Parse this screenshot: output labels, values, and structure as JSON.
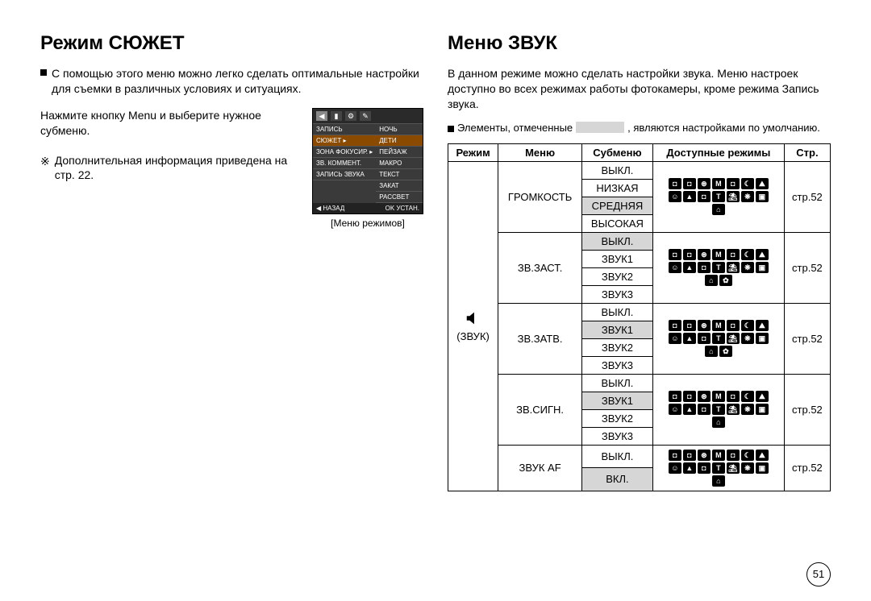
{
  "page_number": "51",
  "left": {
    "title": "Режим СЮЖЕТ",
    "intro": "С помощью этого меню можно легко сделать оптимальные настройки для съемки в различных условиях и ситуациях.",
    "press_menu": "Нажмите кнопку Menu и выберите нужное субменю.",
    "more_info": "Дополнительная информация приведена на стр. 22.",
    "menu_caption": "[Меню режимов]",
    "menu": {
      "left_items": [
        "ЗАПИСЬ",
        "СЮЖЕТ",
        "ЗОНА ФОКУСИР.",
        "ЗВ. КОММЕНТ.",
        "ЗАПИСЬ ЗВУКА"
      ],
      "right_items": [
        "НОЧЬ",
        "ДЕТИ",
        "ПЕЙЗАЖ",
        "МАКРО",
        "ТЕКСТ",
        "ЗАКАТ",
        "РАССВЕТ"
      ],
      "back": "◀ НАЗАД",
      "ok": "OK УСТАН."
    }
  },
  "right": {
    "title": "Меню ЗВУК",
    "intro": "В данном режиме можно сделать настройки звука. Меню настроек доступно во всех режимах работы фотокамеры, кроме режима Запись звука.",
    "default_note_pre": "Элементы, отмеченные",
    "default_note_post": ", являются настройками по умолчанию.",
    "table": {
      "headers": {
        "mode": "Режим",
        "menu": "Меню",
        "submenu": "Субменю",
        "modes_avail": "Доступные режимы",
        "page": "Стр."
      },
      "mode_label": "(ЗВУК)",
      "page_ref": "стр.52",
      "groups": [
        {
          "menu": "ГРОМКОСТЬ",
          "items": [
            {
              "label": "ВЫКЛ.",
              "default": false
            },
            {
              "label": "НИЗКАЯ",
              "default": false
            },
            {
              "label": "СРЕДНЯЯ",
              "default": true
            },
            {
              "label": "ВЫСОКАЯ",
              "default": false
            }
          ],
          "icon_count": 15
        },
        {
          "menu": "ЗВ.ЗАСТ.",
          "items": [
            {
              "label": "ВЫКЛ.",
              "default": true
            },
            {
              "label": "ЗВУК1",
              "default": false
            },
            {
              "label": "ЗВУК2",
              "default": false
            },
            {
              "label": "ЗВУК3",
              "default": false
            }
          ],
          "icon_count": 16
        },
        {
          "menu": "ЗВ.ЗАТВ.",
          "items": [
            {
              "label": "ВЫКЛ.",
              "default": false
            },
            {
              "label": "ЗВУК1",
              "default": true
            },
            {
              "label": "ЗВУК2",
              "default": false
            },
            {
              "label": "ЗВУК3",
              "default": false
            }
          ],
          "icon_count": 16
        },
        {
          "menu": "ЗВ.СИГН.",
          "items": [
            {
              "label": "ВЫКЛ.",
              "default": false
            },
            {
              "label": "ЗВУК1",
              "default": true
            },
            {
              "label": "ЗВУК2",
              "default": false
            },
            {
              "label": "ЗВУК3",
              "default": false
            }
          ],
          "icon_count": 15
        },
        {
          "menu": "ЗВУК AF",
          "items": [
            {
              "label": "ВЫКЛ.",
              "default": false
            },
            {
              "label": "ВКЛ.",
              "default": true
            }
          ],
          "icon_count": 15
        }
      ],
      "mode_glyphs": [
        "◘",
        "◘",
        "⊛",
        "M",
        "◘",
        "☾",
        "⛰",
        "☺",
        "▲",
        "◘",
        "T",
        "⛱",
        "❋",
        "▣",
        "⌂",
        "✿"
      ]
    }
  },
  "colors": {
    "default_bg": "#d6d6d6",
    "icon_bg": "#000000",
    "menu_bg": "#3a3a3a",
    "menu_hl": "#8a4a00"
  }
}
